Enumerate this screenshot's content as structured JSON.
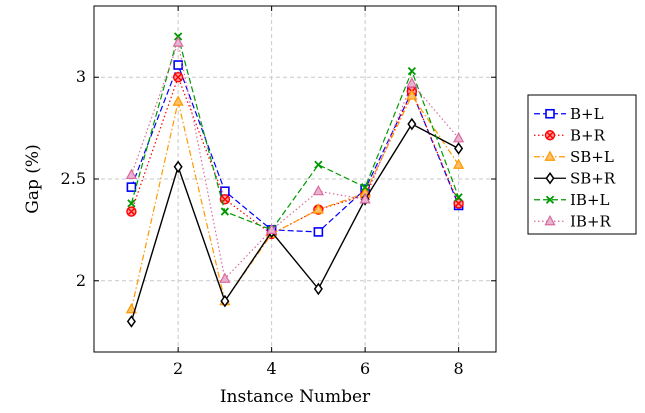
{
  "chart_data": {
    "type": "line",
    "title": "",
    "xlabel": "Instance Number",
    "ylabel": "Gap (%)",
    "x": [
      1,
      2,
      3,
      4,
      5,
      6,
      7,
      8
    ],
    "xlim": [
      0.2,
      8.8
    ],
    "ylim": [
      1.65,
      3.35
    ],
    "xticks": [
      2,
      4,
      6,
      8
    ],
    "yticks": [
      2,
      2.5,
      3
    ],
    "grid": true,
    "legend_position": "right",
    "series": [
      {
        "name": "B+L",
        "color": "#0000ff",
        "dash": "dashed",
        "marker": "square",
        "values": [
          2.46,
          3.06,
          2.44,
          2.25,
          2.24,
          2.45,
          2.93,
          2.37
        ]
      },
      {
        "name": "B+R",
        "color": "#ff0000",
        "dash": "dotted",
        "marker": "otimes",
        "values": [
          2.34,
          3.0,
          2.4,
          2.23,
          2.35,
          2.42,
          2.93,
          2.38
        ]
      },
      {
        "name": "SB+L",
        "color": "#ff9900",
        "dash": "dashdot",
        "marker": "triangle",
        "values": [
          1.86,
          2.88,
          1.9,
          2.23,
          2.35,
          2.43,
          2.91,
          2.57
        ]
      },
      {
        "name": "SB+R",
        "color": "#000000",
        "dash": "solid",
        "marker": "diamond",
        "values": [
          1.8,
          2.56,
          1.9,
          2.24,
          1.96,
          2.4,
          2.77,
          2.65
        ]
      },
      {
        "name": "IB+L",
        "color": "#009900",
        "dash": "dashed",
        "marker": "x",
        "values": [
          2.38,
          3.2,
          2.34,
          2.25,
          2.57,
          2.46,
          3.03,
          2.41
        ]
      },
      {
        "name": "IB+R",
        "color": "#d96ba0",
        "dash": "dotted",
        "marker": "triangle-filled",
        "values": [
          2.52,
          3.17,
          2.01,
          2.25,
          2.44,
          2.4,
          2.97,
          2.7
        ]
      }
    ]
  }
}
